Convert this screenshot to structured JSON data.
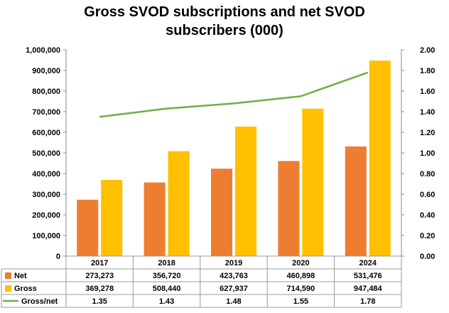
{
  "chart_data": {
    "type": "bar",
    "title_lines": [
      "Gross SVOD subscriptions and net SVOD",
      "subscribers (000)"
    ],
    "categories": [
      "2017",
      "2018",
      "2019",
      "2020",
      "2024"
    ],
    "series": [
      {
        "name": "Net",
        "kind": "bar",
        "axis": "left",
        "color": "#ED7D31",
        "values": [
          273273,
          356720,
          423763,
          460898,
          531476
        ],
        "labels": [
          "273,273",
          "356,720",
          "423,763",
          "460,898",
          "531,476"
        ]
      },
      {
        "name": "Gross",
        "kind": "bar",
        "axis": "left",
        "color": "#FFC000",
        "values": [
          369278,
          508440,
          627937,
          714590,
          947484
        ],
        "labels": [
          "369,278",
          "508,440",
          "627,937",
          "714,590",
          "947,484"
        ]
      },
      {
        "name": "Gross/net",
        "kind": "line",
        "axis": "right",
        "color": "#70AD47",
        "values": [
          1.35,
          1.43,
          1.48,
          1.55,
          1.78
        ],
        "labels": [
          "1.35",
          "1.43",
          "1.48",
          "1.55",
          "1.78"
        ]
      }
    ],
    "y_left": {
      "ylim": [
        0,
        1000000
      ],
      "ticks": [
        "0",
        "100,000",
        "200,000",
        "300,000",
        "400,000",
        "500,000",
        "600,000",
        "700,000",
        "800,000",
        "900,000",
        "1,000,000"
      ]
    },
    "y_right": {
      "ylim": [
        0,
        2.0
      ],
      "ticks": [
        "0.00",
        "0.20",
        "0.40",
        "0.60",
        "0.80",
        "1.00",
        "1.20",
        "1.40",
        "1.60",
        "1.80",
        "2.00"
      ]
    },
    "grid": false,
    "legend": "data-table-bottom"
  }
}
